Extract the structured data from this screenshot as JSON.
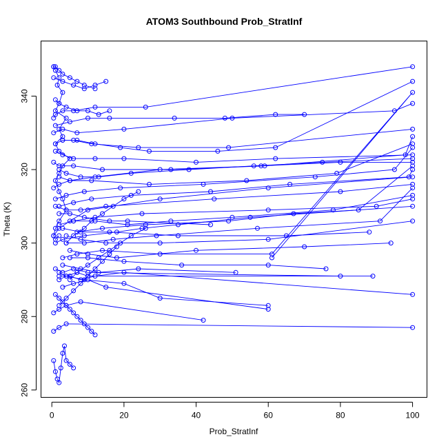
{
  "chart_data": {
    "type": "line",
    "title": "ATOM3 Southbound Prob_StratInf",
    "xlabel": "Prob_StratInf",
    "ylabel": "Theta (K)",
    "xlim": [
      -3,
      104
    ],
    "ylim": [
      258,
      355
    ],
    "xticks": [
      0,
      20,
      40,
      60,
      80,
      100
    ],
    "yticks": [
      260,
      280,
      300,
      320,
      340
    ],
    "grid": false,
    "legend": "none",
    "color": "#0000ff",
    "marker": "open-circle",
    "series": [
      {
        "x": [
          0.5,
          1,
          2,
          1.5,
          3,
          2,
          1,
          4,
          2,
          3,
          1,
          2,
          5,
          3,
          2,
          1,
          2,
          3,
          4,
          2,
          1,
          0.5,
          1,
          2
        ],
        "y": [
          348,
          347,
          345,
          343,
          341,
          338,
          336,
          334,
          331,
          329,
          327,
          325,
          323,
          321,
          319,
          317,
          314,
          312,
          309,
          306,
          304,
          302,
          301,
          302
        ]
      },
      {
        "x": [
          0.5,
          2,
          5,
          10,
          30,
          60,
          100
        ],
        "y": [
          302,
          304,
          306,
          309,
          312,
          315,
          318
        ]
      },
      {
        "x": [
          1,
          4,
          8,
          15,
          45,
          80,
          100
        ],
        "y": [
          310,
          309,
          309,
          310,
          312,
          314,
          316
        ]
      },
      {
        "x": [
          2,
          6,
          12,
          25,
          60,
          90,
          100
        ],
        "y": [
          305,
          306,
          307,
          308,
          309,
          310,
          312
        ]
      },
      {
        "x": [
          0.5,
          3,
          7,
          20,
          50,
          95,
          100
        ],
        "y": [
          330,
          331,
          330,
          331,
          334,
          336,
          338
        ]
      },
      {
        "x": [
          1,
          5,
          10,
          16,
          34,
          48,
          62,
          70
        ],
        "y": [
          332,
          333,
          334,
          334,
          334,
          334,
          335,
          335
        ]
      },
      {
        "x": [
          1,
          3,
          6,
          12,
          20,
          40,
          62,
          100
        ],
        "y": [
          325,
          324,
          323,
          323,
          323,
          322,
          323,
          324
        ]
      },
      {
        "x": [
          2,
          4,
          8,
          13,
          22,
          38,
          56,
          75,
          100
        ],
        "y": [
          320,
          319,
          318,
          318,
          319,
          320,
          321,
          322,
          323
        ]
      },
      {
        "x": [
          0.5,
          2,
          5,
          12,
          30,
          58,
          80,
          100
        ],
        "y": [
          315,
          316,
          317,
          318,
          320,
          321,
          322,
          322
        ]
      },
      {
        "x": [
          1,
          3,
          9,
          18,
          25,
          35,
          55,
          100
        ],
        "y": [
          300,
          301,
          302,
          303,
          304,
          305,
          307,
          310
        ]
      },
      {
        "x": [
          3,
          7,
          14,
          30,
          61,
          100,
          61
        ],
        "y": [
          296,
          297,
          298,
          297,
          297,
          341,
          296
        ]
      },
      {
        "x": [
          2,
          4,
          9,
          20,
          30,
          60
        ],
        "y": [
          290,
          291,
          290,
          289,
          285,
          283
        ]
      },
      {
        "x": [
          3,
          6,
          10,
          15,
          60
        ],
        "y": [
          288,
          289,
          290,
          288,
          282
        ]
      },
      {
        "x": [
          2,
          5,
          8,
          12,
          20,
          100
        ],
        "y": [
          291,
          291,
          290,
          291,
          292,
          286
        ]
      },
      {
        "x": [
          2,
          4,
          7,
          10,
          89
        ],
        "y": [
          292,
          291,
          292,
          291,
          291
        ]
      },
      {
        "x": [
          1,
          3,
          6,
          10,
          80
        ],
        "y": [
          293,
          292,
          293,
          292,
          291
        ]
      },
      {
        "x": [
          0.5,
          2,
          4,
          8,
          42
        ],
        "y": [
          281,
          282,
          283,
          284,
          279
        ]
      },
      {
        "x": [
          0.5,
          2,
          4,
          100
        ],
        "y": [
          276,
          277,
          278,
          277
        ]
      },
      {
        "x": [
          1,
          2,
          3,
          4,
          5,
          6,
          7,
          8,
          9,
          10,
          11,
          12
        ],
        "y": [
          286,
          285,
          284,
          283,
          282,
          281,
          280,
          279,
          278,
          277,
          276,
          275
        ]
      },
      {
        "x": [
          0.5,
          1,
          1.5,
          2,
          2.5,
          3,
          3.5,
          4,
          5,
          6
        ],
        "y": [
          268,
          265,
          263,
          262,
          266,
          270,
          272,
          268,
          267,
          266
        ]
      },
      {
        "x": [
          4,
          8,
          15,
          30,
          60,
          100
        ],
        "y": [
          302,
          301,
          300,
          300,
          301,
          306
        ]
      },
      {
        "x": [
          5,
          10,
          18,
          40,
          70,
          94
        ],
        "y": [
          298,
          297,
          296,
          298,
          299,
          300
        ]
      },
      {
        "x": [
          3,
          8,
          16,
          35,
          65,
          88
        ],
        "y": [
          304,
          303,
          303,
          302,
          302,
          303
        ]
      },
      {
        "x": [
          2,
          6,
          11,
          22,
          44,
          66,
          99,
          100
        ],
        "y": [
          310,
          311,
          312,
          313,
          314,
          316,
          318,
          320
        ]
      },
      {
        "x": [
          1,
          4,
          9,
          19,
          42,
          73,
          95,
          100
        ],
        "y": [
          312,
          313,
          314,
          315,
          316,
          318,
          320,
          326
        ]
      },
      {
        "x": [
          2,
          5,
          11,
          27,
          54,
          79,
          100
        ],
        "y": [
          318,
          317,
          317,
          316,
          317,
          319,
          327
        ]
      },
      {
        "x": [
          0.5,
          2,
          6,
          14,
          33,
          59,
          98,
          100
        ],
        "y": [
          322,
          321,
          321,
          320,
          320,
          321,
          324,
          329
        ]
      },
      {
        "x": [
          1,
          3,
          6,
          11,
          24,
          49,
          100
        ],
        "y": [
          327,
          328,
          328,
          327,
          326,
          326,
          331
        ]
      },
      {
        "x": [
          0.5,
          1,
          3,
          6,
          12,
          26,
          100
        ],
        "y": [
          334,
          335,
          336,
          336,
          337,
          337,
          348
        ]
      },
      {
        "x": [
          3,
          7,
          12,
          19,
          27,
          46,
          62,
          100
        ],
        "y": [
          328,
          328,
          327,
          326,
          325,
          325,
          326,
          344
        ]
      },
      {
        "x": [
          2,
          5,
          9,
          16,
          21,
          44
        ],
        "y": [
          308,
          308,
          307,
          306,
          306,
          305
        ]
      },
      {
        "x": [
          6,
          12,
          21,
          33,
          50,
          78,
          100
        ],
        "y": [
          306,
          306,
          305,
          306,
          307,
          309,
          313
        ]
      },
      {
        "x": [
          7,
          14,
          26,
          49,
          67,
          85,
          100
        ],
        "y": [
          303,
          304,
          305,
          306,
          308,
          309,
          321
        ]
      },
      {
        "x": [
          4,
          9,
          17,
          29,
          57,
          91,
          100
        ],
        "y": [
          300,
          300,
          301,
          302,
          304,
          306,
          315
        ]
      },
      {
        "x": [
          5,
          10,
          20,
          36,
          60,
          76
        ],
        "y": [
          296,
          296,
          295,
          294,
          294,
          293
        ]
      },
      {
        "x": [
          3,
          8,
          13,
          24,
          51
        ],
        "y": [
          294,
          293,
          292,
          293,
          292
        ]
      },
      {
        "x": [
          0.5,
          3,
          6,
          9,
          12,
          15
        ],
        "y": [
          345,
          344,
          343,
          342,
          343,
          344
        ]
      },
      {
        "x": [
          1,
          2,
          4,
          7,
          10,
          13,
          16
        ],
        "y": [
          339,
          338,
          337,
          336,
          336,
          335,
          336
        ]
      },
      {
        "x": [
          0.5,
          1,
          2,
          3,
          5,
          7,
          9,
          12
        ],
        "y": [
          348,
          348,
          347,
          346,
          345,
          344,
          343,
          342
        ]
      },
      {
        "x": [
          4,
          6,
          9,
          11,
          14,
          17,
          20,
          24
        ],
        "y": [
          300,
          302,
          304,
          306,
          308,
          310,
          312,
          314
        ]
      },
      {
        "x": [
          5,
          7,
          10,
          13,
          16,
          19,
          22,
          26
        ],
        "y": [
          290,
          292,
          294,
          296,
          298,
          300,
          302,
          304
        ]
      },
      {
        "x": [
          2,
          4,
          6,
          8,
          10,
          12,
          14,
          16,
          18
        ],
        "y": [
          283,
          285,
          287,
          289,
          291,
          293,
          295,
          297,
          299
        ]
      }
    ]
  }
}
